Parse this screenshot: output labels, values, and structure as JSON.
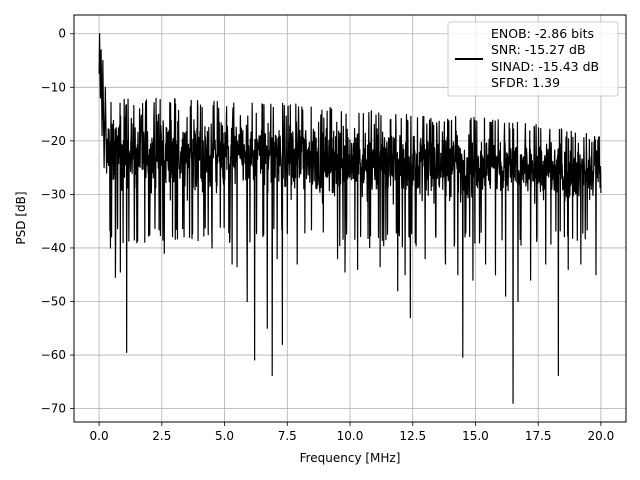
{
  "chart_data": {
    "type": "line",
    "title": "",
    "xlabel": "Frequency [MHz]",
    "ylabel": "PSD [dB]",
    "xlim": [
      -1.0,
      21.0
    ],
    "ylim": [
      -72.5,
      3.5
    ],
    "x_ticks": [
      0.0,
      2.5,
      5.0,
      7.5,
      10.0,
      12.5,
      15.0,
      17.5,
      20.0
    ],
    "x_tick_labels": [
      "0.0",
      "2.5",
      "5.0",
      "7.5",
      "10.0",
      "12.5",
      "15.0",
      "17.5",
      "20.0"
    ],
    "y_ticks": [
      0,
      -10,
      -20,
      -30,
      -40,
      -50,
      -60,
      -70
    ],
    "y_tick_labels": [
      "0",
      "−10",
      "−20",
      "−30",
      "−40",
      "−50",
      "−60",
      "−70"
    ],
    "grid": true,
    "legend_position": "top-right",
    "legend": {
      "entries": [
        "ENOB: -2.86 bits",
        "SNR: -15.27 dB",
        "SINAD: -15.43 dB",
        "SFDR: 1.39"
      ]
    },
    "series": [
      {
        "color": "#000000",
        "x_range": [
          0.0,
          20.0
        ],
        "start_peak": [
          [
            0.0,
            -7.5
          ],
          [
            0.02,
            0.0
          ],
          [
            0.05,
            -12.0
          ],
          [
            0.08,
            -3.0
          ],
          [
            0.12,
            -19.0
          ],
          [
            0.15,
            -5.0
          ],
          [
            0.2,
            -25.0
          ],
          [
            0.25,
            -10.0
          ],
          [
            0.3,
            -26.0
          ]
        ],
        "envelope_upper": [
          [
            0.3,
            -12
          ],
          [
            2.5,
            -12
          ],
          [
            5.0,
            -12.5
          ],
          [
            7.5,
            -12.5
          ],
          [
            10.0,
            -14
          ],
          [
            12.5,
            -15
          ],
          [
            15.0,
            -15.5
          ],
          [
            17.5,
            -17
          ],
          [
            20.0,
            -19
          ]
        ],
        "envelope_lower": [
          [
            0.3,
            -36
          ],
          [
            2.5,
            -36
          ],
          [
            5.0,
            -36
          ],
          [
            7.5,
            -36
          ],
          [
            10.0,
            -37
          ],
          [
            12.5,
            -37
          ],
          [
            15.0,
            -37
          ],
          [
            17.5,
            -37
          ],
          [
            20.0,
            -35
          ]
        ],
        "dips": [
          [
            0.45,
            -40.0
          ],
          [
            0.65,
            -45.5
          ],
          [
            0.85,
            -44.5
          ],
          [
            1.1,
            -59.5
          ],
          [
            1.5,
            -39.0
          ],
          [
            2.0,
            -37.0
          ],
          [
            2.6,
            -41.0
          ],
          [
            3.6,
            -38.0
          ],
          [
            4.5,
            -40.0
          ],
          [
            5.3,
            -43.0
          ],
          [
            5.5,
            -43.5
          ],
          [
            5.9,
            -50.0
          ],
          [
            6.2,
            -60.9
          ],
          [
            6.7,
            -55.0
          ],
          [
            6.9,
            -63.8
          ],
          [
            7.1,
            -42.0
          ],
          [
            7.3,
            -58.0
          ],
          [
            7.9,
            -43.0
          ],
          [
            9.5,
            -42.0
          ],
          [
            9.8,
            -44.5
          ],
          [
            10.3,
            -44.0
          ],
          [
            11.2,
            -43.5
          ],
          [
            11.9,
            -48.0
          ],
          [
            12.2,
            -45.0
          ],
          [
            12.4,
            -53.0
          ],
          [
            13.0,
            -42.0
          ],
          [
            13.8,
            -43.0
          ],
          [
            14.3,
            -45.0
          ],
          [
            14.5,
            -60.4
          ],
          [
            14.9,
            -46.0
          ],
          [
            15.4,
            -43.0
          ],
          [
            15.8,
            -45.0
          ],
          [
            16.2,
            -49.0
          ],
          [
            16.5,
            -69.0
          ],
          [
            16.7,
            -50.0
          ],
          [
            17.2,
            -46.0
          ],
          [
            17.8,
            -43.0
          ],
          [
            18.3,
            -63.8
          ],
          [
            18.7,
            -44.0
          ],
          [
            19.2,
            -43.0
          ],
          [
            19.8,
            -45.0
          ]
        ]
      }
    ]
  }
}
